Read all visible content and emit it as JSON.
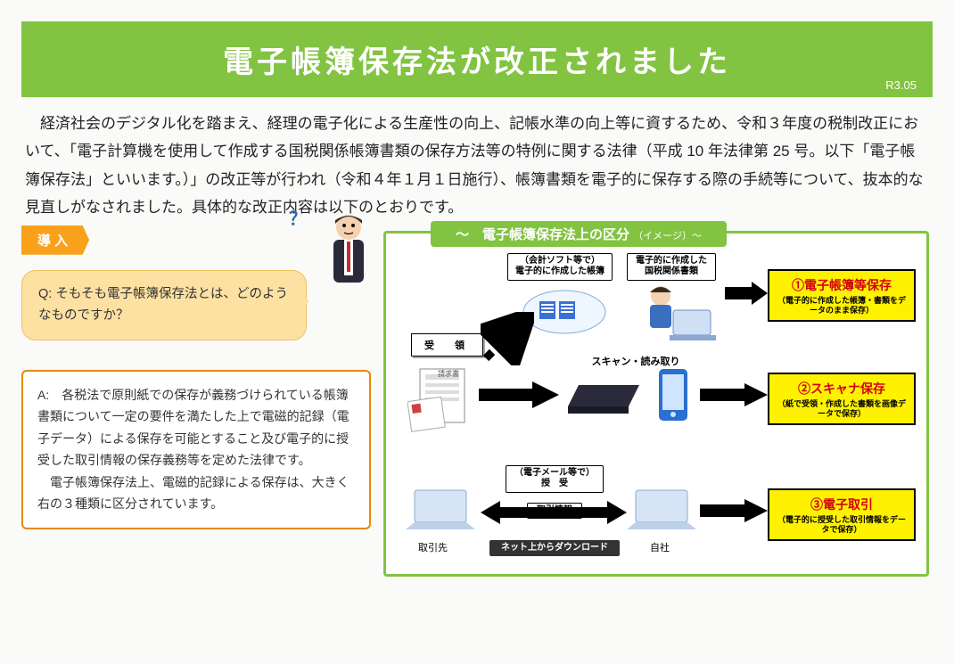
{
  "header": {
    "title": "電子帳簿保存法が改正されました",
    "revision": "R3.05",
    "band_color": "#82c341"
  },
  "intro_text": "経済社会のデジタル化を踏まえ、経理の電子化による生産性の向上、記帳水準の向上等に資するため、令和３年度の税制改正において、「電子計算機を使用して作成する国税関係帳簿書類の保存方法等の特例に関する法律（平成 10 年法律第 25 号。以下「電子帳簿保存法」といいます。）」の改正等が行われ（令和４年１月１日施行）、帳簿書類を電子的に保存する際の手続等について、抜本的な見直しがなされました。具体的な改正内容は以下のとおりです。",
  "left": {
    "tag": "導 入",
    "question": "Q:  そもそも電子帳簿保存法とは、どのようなものですか？",
    "answer": "A:　各税法で原則紙での保存が義務づけられている帳簿書類について一定の要件を満たした上で電磁的記録（電子データ）による保存を可能とすること及び電子的に授受した取引情報の保存義務等を定めた法律です。\n　電子帳簿保存法上、電磁的記録による保存は、大きく右の３種類に区分されています。",
    "qmark": "？"
  },
  "diagram": {
    "title": "～　電子帳簿保存法上の区分",
    "title_sub": "（イメージ）～",
    "labels": {
      "soft": "（会計ソフト等で）\n電子的に作成した帳簿",
      "kokuzei": "電子的に作成した\n国税関係書類",
      "scan": "スキャン・読み取り",
      "mail": "（電子メール等で）\n授　受",
      "torihiki": "取引情報",
      "download": "ネット上からダウンロード",
      "left_pc": "取引先",
      "right_pc": "自社",
      "receipt": "受　領"
    },
    "yellow_boxes": [
      {
        "title": "①電子帳簿等保存",
        "sub": "（電子的に作成した帳簿・書類をデータのまま保存）"
      },
      {
        "title": "②スキャナ保存",
        "sub": "（紙で受領・作成した書類を画像データで保存）"
      },
      {
        "title": "③電子取引",
        "sub": "（電子的に授受した取引情報をデータで保存）"
      }
    ],
    "colors": {
      "border": "#82c341",
      "yellow": "#fff200",
      "red": "#d4000e"
    }
  }
}
